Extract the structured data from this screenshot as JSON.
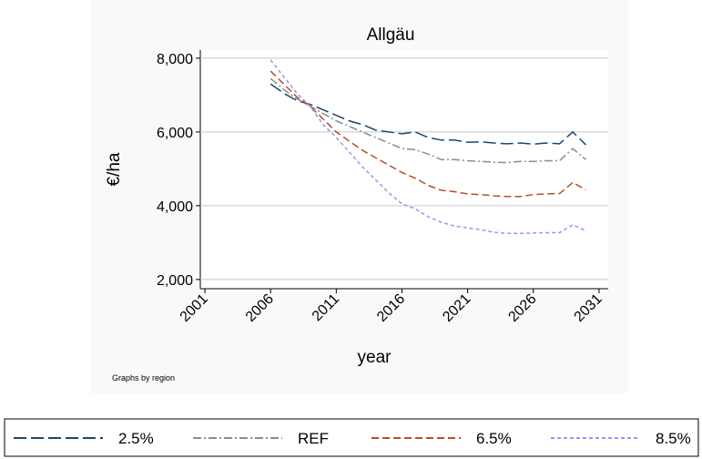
{
  "chart_data": {
    "type": "line",
    "title": "Allgäu",
    "y_label": "€/ha",
    "x_label": "year",
    "note": "Graphs by region",
    "x": [
      2006,
      2007,
      2008,
      2009,
      2010,
      2011,
      2012,
      2013,
      2014,
      2015,
      2016,
      2017,
      2018,
      2019,
      2020,
      2021,
      2022,
      2023,
      2024,
      2025,
      2026,
      2027,
      2028,
      2029,
      2030
    ],
    "series": [
      {
        "name": "2.5%",
        "color": "#1a476f",
        "dash": "14 5",
        "values": [
          7300,
          7050,
          6850,
          6750,
          6600,
          6450,
          6300,
          6200,
          6050,
          6000,
          5950,
          6000,
          5850,
          5780,
          5780,
          5720,
          5730,
          5700,
          5680,
          5700,
          5670,
          5700,
          5680,
          6000,
          5650
        ]
      },
      {
        "name": "REF",
        "color": "#8c8c8c",
        "dash": "9 3 2 3",
        "values": [
          7450,
          7150,
          6900,
          6700,
          6500,
          6300,
          6150,
          6000,
          5850,
          5700,
          5550,
          5520,
          5400,
          5250,
          5250,
          5220,
          5200,
          5180,
          5170,
          5200,
          5200,
          5220,
          5220,
          5550,
          5250
        ]
      },
      {
        "name": "6.5%",
        "color": "#b5502a",
        "dash": "8 4",
        "values": [
          7650,
          7300,
          6950,
          6700,
          6350,
          6000,
          5750,
          5500,
          5300,
          5100,
          4900,
          4750,
          4550,
          4420,
          4380,
          4320,
          4300,
          4270,
          4250,
          4250,
          4300,
          4320,
          4330,
          4630,
          4430
        ]
      },
      {
        "name": "8.5%",
        "color": "#9a97e8",
        "dash": "4 3",
        "values": [
          7950,
          7500,
          7050,
          6700,
          6200,
          5850,
          5450,
          5050,
          4700,
          4350,
          4050,
          3920,
          3700,
          3550,
          3450,
          3400,
          3350,
          3280,
          3250,
          3250,
          3260,
          3270,
          3270,
          3480,
          3320
        ]
      }
    ],
    "xlim": [
      2000.65,
      2031.7
    ],
    "xticks": [
      2001,
      2006,
      2011,
      2016,
      2021,
      2026,
      2031
    ],
    "ylim": [
      1750,
      8220
    ],
    "yticks": [
      {
        "value": 2000,
        "label": "2,000"
      },
      {
        "value": 4000,
        "label": "4,000"
      },
      {
        "value": 6000,
        "label": "6,000"
      },
      {
        "value": 8000,
        "label": "8,000"
      }
    ],
    "grid": true
  }
}
